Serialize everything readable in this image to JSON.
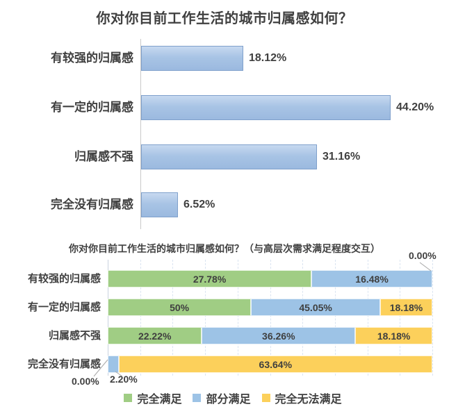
{
  "chart_data": [
    {
      "type": "bar",
      "orientation": "horizontal",
      "title": "你对你目前工作生活的城市归属感如何？",
      "categories": [
        "有较强的归属感",
        "有一定的归属感",
        "归属感不强",
        "完全没有归属感"
      ],
      "values": [
        18.12,
        44.2,
        31.16,
        6.52
      ],
      "value_labels": [
        "18.12%",
        "44.20%",
        "31.16%",
        "6.52%"
      ],
      "bar_color": "#A8C4E5",
      "bar_border_color": "#7FA0CB",
      "grid": false,
      "xlim": [
        0,
        55
      ]
    },
    {
      "type": "bar",
      "subtype": "stacked-normalized-100",
      "orientation": "horizontal",
      "title": "你对你目前工作生活的城市归属感如何？（与高层次需求满足程度交互）",
      "categories": [
        "有较强的归属感",
        "有一定的归属感",
        "归属感不强",
        "完全没有归属感"
      ],
      "series": [
        {
          "name": "完全满足",
          "color": "#A0CD84",
          "values": [
            27.78,
            50,
            22.22,
            0
          ],
          "labels": [
            "27.78%",
            "50%",
            "22.22%",
            "0.00%"
          ]
        },
        {
          "name": "部分满足",
          "color": "#9DC3E6",
          "values": [
            16.48,
            45.05,
            36.26,
            2.2
          ],
          "labels": [
            "16.48%",
            "45.05%",
            "36.26%",
            "2.20%"
          ]
        },
        {
          "name": "完全无法满足",
          "color": "#FCD05B",
          "values": [
            0,
            18.18,
            18.18,
            63.64
          ],
          "labels": [
            "0.00%",
            "18.18%",
            "18.18%",
            "63.64%"
          ]
        }
      ],
      "callouts": {
        "row1_yellow_zero": "0.00%",
        "row4_green_zero": "0.00%",
        "row4_blue_small": "2.20%"
      },
      "grid": true,
      "legend_position": "bottom"
    }
  ]
}
